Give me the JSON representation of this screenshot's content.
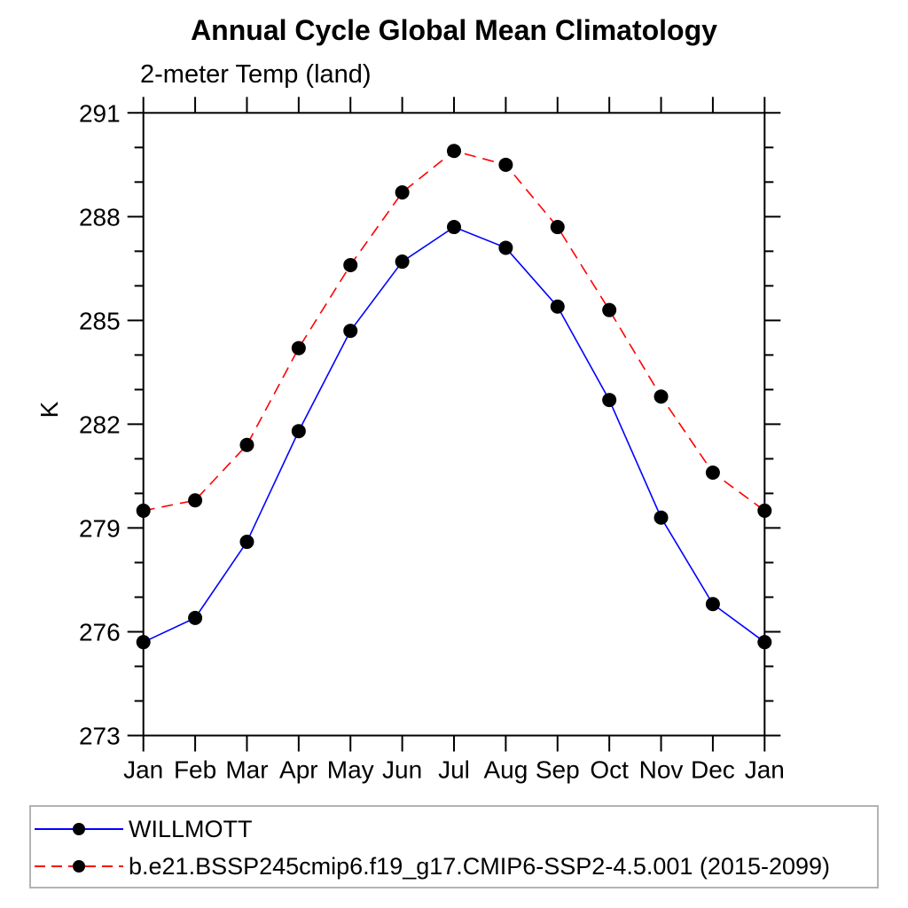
{
  "chart_data": {
    "type": "line",
    "title": "Annual Cycle Global Mean Climatology",
    "subtitle": "2-meter Temp (land)",
    "xlabel": "",
    "ylabel": "K",
    "categories": [
      "Jan",
      "Feb",
      "Mar",
      "Apr",
      "May",
      "Jun",
      "Jul",
      "Aug",
      "Sep",
      "Oct",
      "Nov",
      "Dec",
      "Jan"
    ],
    "ylim": [
      273,
      291
    ],
    "yticks_major": [
      273,
      276,
      279,
      282,
      285,
      288,
      291
    ],
    "ytick_step_minor": 1,
    "grid": false,
    "legend_position": "bottom",
    "axis_color": "#000000",
    "marker_color": "#000000",
    "marker_shape": "filled-circle",
    "series": [
      {
        "name": "WILLMOTT",
        "color": "#0000ff",
        "line_style": "solid",
        "values": [
          275.7,
          276.4,
          278.6,
          281.8,
          284.7,
          286.7,
          287.7,
          287.1,
          285.4,
          282.7,
          279.3,
          276.8,
          275.7
        ]
      },
      {
        "name": "b.e21.BSSP245cmip6.f19_g17.CMIP6-SSP2-4.5.001 (2015-2099)",
        "color": "#ff0000",
        "line_style": "dashed",
        "values": [
          279.5,
          279.8,
          281.4,
          284.2,
          286.6,
          288.7,
          289.9,
          289.5,
          287.7,
          285.3,
          282.8,
          280.6,
          279.5
        ]
      }
    ],
    "legend_border_color": "#b3b3b3"
  }
}
